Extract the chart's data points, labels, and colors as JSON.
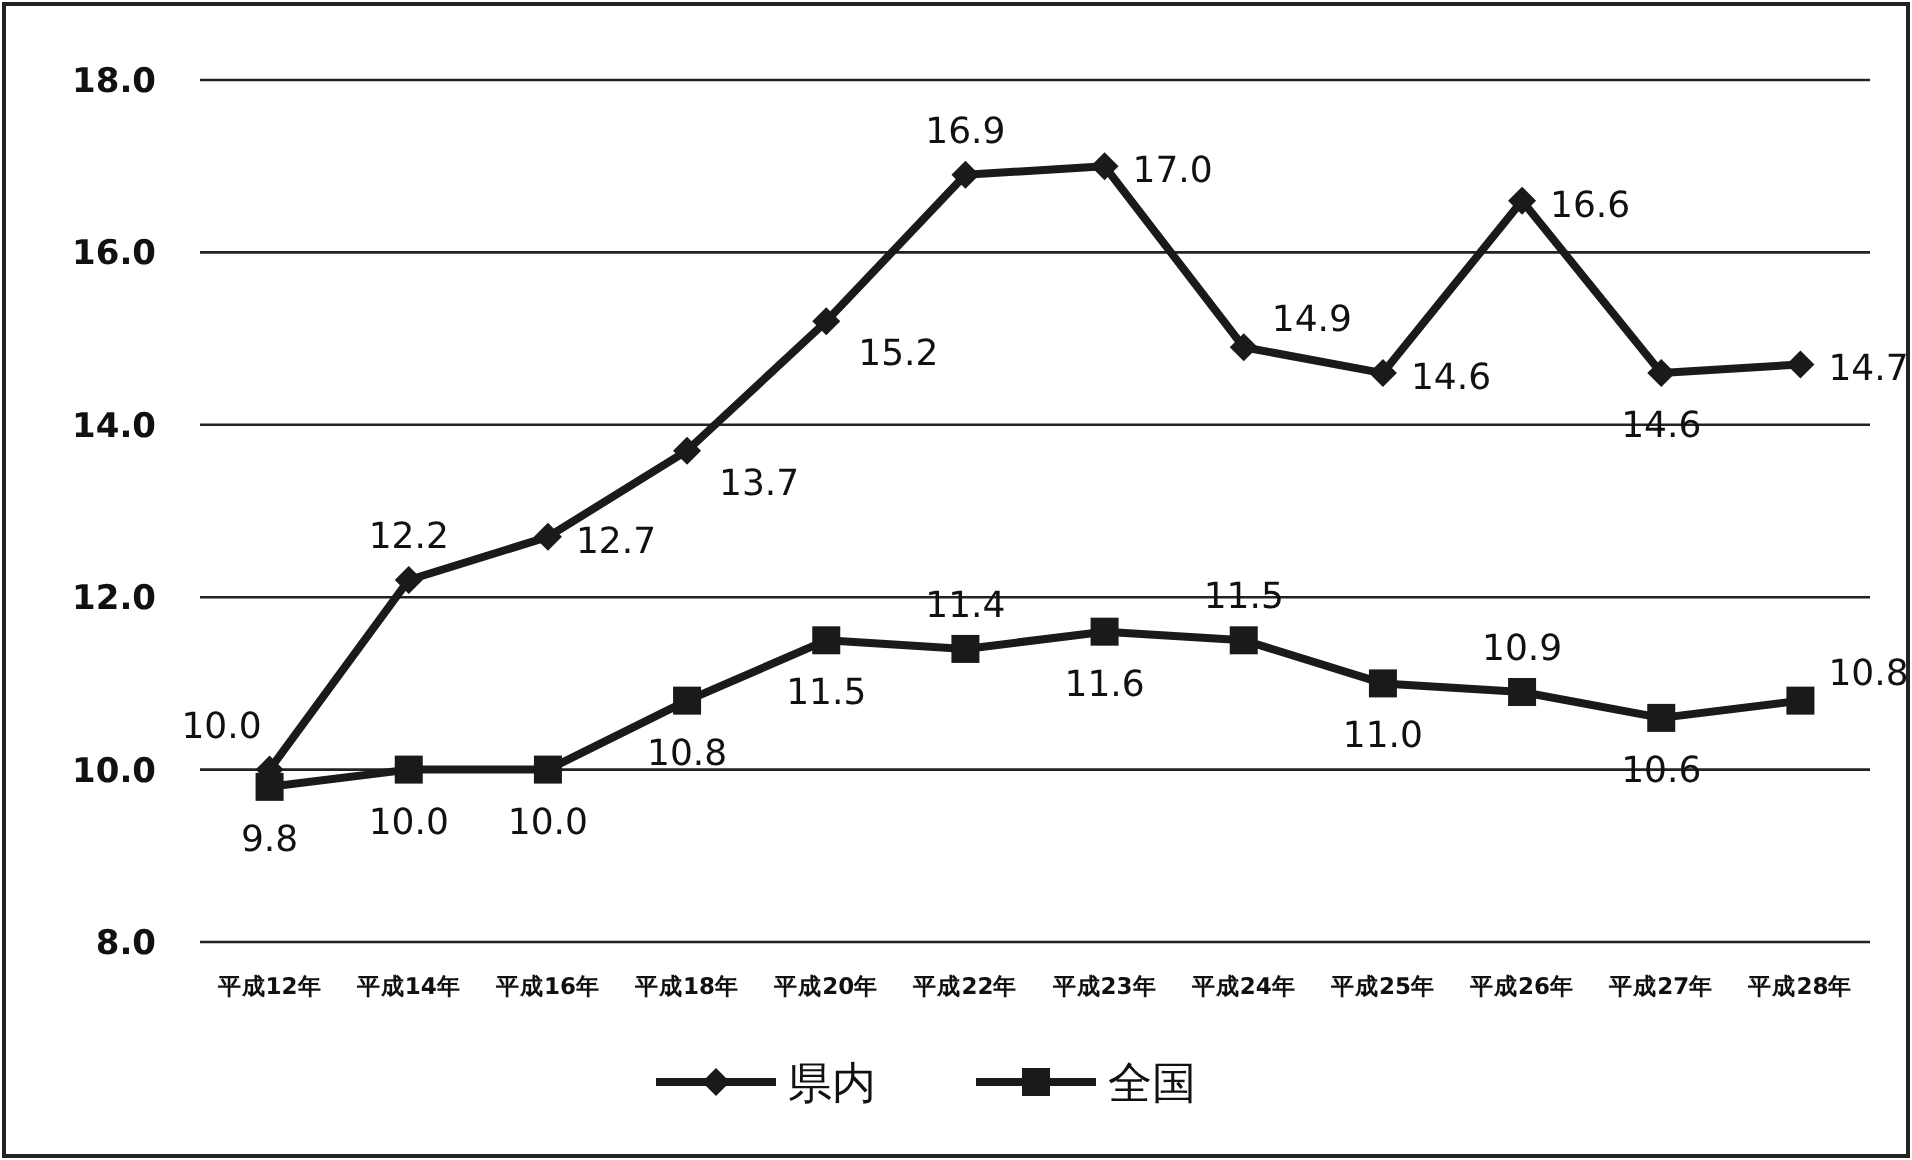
{
  "chart_data": {
    "type": "line",
    "categories": [
      "平成12年",
      "平成14年",
      "平成16年",
      "平成18年",
      "平成20年",
      "平成22年",
      "平成23年",
      "平成24年",
      "平成25年",
      "平成26年",
      "平成27年",
      "平成28年"
    ],
    "series": [
      {
        "name": "県内",
        "color": "#1a1a1a",
        "marker": "diamond",
        "values": [
          10.0,
          12.2,
          12.7,
          13.7,
          15.2,
          16.9,
          17.0,
          14.9,
          14.6,
          16.6,
          14.6,
          14.7
        ],
        "value_labels": [
          "10.0",
          "12.2",
          "12.7",
          "13.7",
          "15.2",
          "16.9",
          "17.0",
          "14.9",
          "14.6",
          "16.6",
          "14.6",
          "14.7"
        ]
      },
      {
        "name": "全国",
        "color": "#1a1a1a",
        "marker": "square",
        "values": [
          9.8,
          10.0,
          10.0,
          10.8,
          11.5,
          11.4,
          11.6,
          11.5,
          11.0,
          10.9,
          10.6,
          10.8
        ],
        "value_labels": [
          "9.8",
          "10.0",
          "10.0",
          "10.8",
          "11.5",
          "11.4",
          "11.6",
          "11.5",
          "11.0",
          "10.9",
          "10.6",
          "10.8"
        ]
      }
    ],
    "ylim": [
      8,
      18
    ],
    "yticks": [
      {
        "value": 8,
        "label": "8.0"
      },
      {
        "value": 10,
        "label": "10.0"
      },
      {
        "value": 12,
        "label": "12.0"
      },
      {
        "value": 14,
        "label": "14.0"
      },
      {
        "value": 16,
        "label": "16.0"
      },
      {
        "value": 18,
        "label": "18.0"
      }
    ],
    "grid": "y",
    "legend": "bottom",
    "line_style": "solid"
  }
}
